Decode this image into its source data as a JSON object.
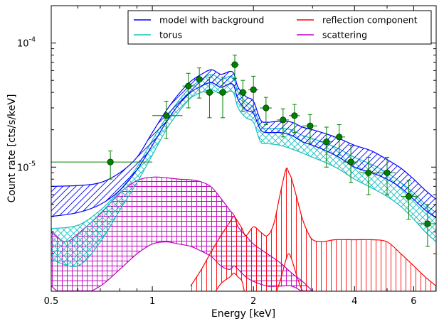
{
  "chart_data": {
    "type": "line",
    "xlabel": "Energy [keV]",
    "ylabel": "Count rate [cts/s/keV]",
    "x_scale": "log",
    "y_scale": "log",
    "xlim": [
      0.5,
      7.0
    ],
    "ylim": [
      1e-06,
      0.0002
    ],
    "x_ticks": [
      {
        "value": 0.5,
        "label": "0.5"
      },
      {
        "value": 1,
        "label": "1"
      },
      {
        "value": 2,
        "label": "2"
      },
      {
        "value": 4,
        "label": "4"
      },
      {
        "value": 6,
        "label": "6"
      }
    ],
    "y_ticks": [
      {
        "value": 1e-05,
        "base": "10",
        "exp": "-5"
      },
      {
        "value": 0.0001,
        "base": "10",
        "exp": "-4"
      }
    ],
    "legend_position": "top-right",
    "legend_columns": 2,
    "series": [
      {
        "name": "model with background",
        "color": "#0000ff",
        "band": "hatched",
        "x": [
          0.5,
          0.6,
          0.7,
          0.8,
          0.9,
          1.0,
          1.1,
          1.2,
          1.3,
          1.4,
          1.5,
          1.6,
          1.7,
          1.75,
          1.8,
          1.9,
          2.0,
          2.1,
          2.2,
          2.4,
          2.6,
          2.8,
          3.0,
          3.3,
          3.6,
          4.0,
          4.5,
          5.0,
          5.5,
          6.0,
          6.5,
          7.0
        ],
        "lower": [
          4e-06,
          4.3e-06,
          5e-06,
          6.5e-06,
          9.5e-06,
          1.5e-05,
          2.3e-05,
          3.2e-05,
          4e-05,
          4.5e-05,
          4.8e-05,
          4.4e-05,
          4.7e-05,
          4.5e-05,
          3.5e-05,
          2.9e-05,
          2.7e-05,
          2e-05,
          1.9e-05,
          1.9e-05,
          1.8e-05,
          1.6e-05,
          1.5e-05,
          1.35e-05,
          1.2e-05,
          1e-05,
          9e-06,
          8e-06,
          6.8e-06,
          5.5e-06,
          4.5e-06,
          3.9e-06
        ],
        "upper": [
          7e-06,
          7.1e-06,
          7.5e-06,
          9e-06,
          1.2e-05,
          1.9e-05,
          2.85e-05,
          3.9e-05,
          4.9e-05,
          5.6e-05,
          6.1e-05,
          5.6e-05,
          5.9e-05,
          5.65e-05,
          4.4e-05,
          3.7e-05,
          3.4e-05,
          2.4e-05,
          2.3e-05,
          2.35e-05,
          2.3e-05,
          2.1e-05,
          2e-05,
          1.85e-05,
          1.7e-05,
          1.5e-05,
          1.35e-05,
          1.15e-05,
          9.8e-06,
          8e-06,
          6.5e-06,
          5.5e-06
        ]
      },
      {
        "name": "torus",
        "color": "#17bfbf",
        "band": "cross-hatched",
        "x": [
          0.5,
          0.6,
          0.7,
          0.8,
          0.9,
          1.0,
          1.1,
          1.2,
          1.3,
          1.4,
          1.5,
          1.6,
          1.7,
          1.75,
          1.8,
          1.9,
          2.0,
          2.1,
          2.2,
          2.4,
          2.6,
          2.8,
          3.0,
          3.3,
          3.6,
          4.0,
          4.5,
          5.0,
          5.5,
          6.0,
          6.5,
          7.0
        ],
        "lower": [
          1.8e-06,
          1.6e-06,
          2.5e-06,
          4.5e-06,
          7.5e-06,
          1.25e-05,
          2e-05,
          2.8e-05,
          3.6e-05,
          4e-05,
          4.2e-05,
          3.9e-05,
          4.1e-05,
          3.9e-05,
          3e-05,
          2.5e-05,
          2.3e-05,
          1.6e-05,
          1.55e-05,
          1.5e-05,
          1.4e-05,
          1.3e-05,
          1.2e-05,
          1.08e-05,
          9.6e-06,
          8e-06,
          6.8e-06,
          5.8e-06,
          4.8e-06,
          3.8e-06,
          3e-06,
          2.5e-06
        ],
        "upper": [
          3.2e-06,
          3.4e-06,
          4.5e-06,
          6.5e-06,
          1e-05,
          1.65e-05,
          2.5e-05,
          3.45e-05,
          4.4e-05,
          5.05e-05,
          5.6e-05,
          5.1e-05,
          5.4e-05,
          5.15e-05,
          4e-05,
          3.35e-05,
          3e-05,
          2.15e-05,
          2.05e-05,
          2.05e-05,
          2e-05,
          1.8e-05,
          1.7e-05,
          1.55e-05,
          1.4e-05,
          1.2e-05,
          1.05e-05,
          9e-06,
          7.5e-06,
          6.2e-06,
          5e-06,
          4.3e-06
        ]
      },
      {
        "name": "reflection component",
        "color": "#ff0000",
        "band": "vertical-hatched",
        "x": [
          1.3,
          1.4,
          1.5,
          1.6,
          1.7,
          1.75,
          1.8,
          1.85,
          1.9,
          2.0,
          2.1,
          2.2,
          2.3,
          2.4,
          2.5,
          2.55,
          2.6,
          2.7,
          2.8,
          2.9,
          3.0,
          3.2,
          3.5,
          4.0,
          4.5,
          5.0,
          5.5,
          6.0,
          6.5,
          7.0
        ],
        "lower": [
          7e-07,
          8e-07,
          9e-07,
          1.15e-06,
          1.3e-06,
          1.4e-06,
          1.3e-06,
          1.2e-06,
          9e-07,
          8e-07,
          9e-07,
          8e-07,
          9e-07,
          1.2e-06,
          1.8e-06,
          2e-06,
          1.8e-06,
          1.3e-06,
          1e-06,
          9e-07,
          8e-07,
          8e-07,
          8e-07,
          8e-07,
          8e-07,
          8e-07,
          7e-07,
          7e-07,
          7e-07,
          7e-07
        ],
        "upper": [
          1.1e-06,
          1.5e-06,
          2.1e-06,
          2.8e-06,
          3.6e-06,
          4e-06,
          3.6e-06,
          3.2e-06,
          2.8e-06,
          3.3e-06,
          3e-06,
          2.8e-06,
          3.5e-06,
          6e-06,
          9.6e-06,
          9e-06,
          8e-06,
          5.5e-06,
          3.8e-06,
          3e-06,
          2.6e-06,
          2.5e-06,
          2.6e-06,
          2.6e-06,
          2.6e-06,
          2.5e-06,
          2e-06,
          1.6e-06,
          1.3e-06,
          1.1e-06
        ]
      },
      {
        "name": "scattering",
        "color": "#bf00bf",
        "band": "grid-hatched",
        "x": [
          0.5,
          0.55,
          0.6,
          0.7,
          0.8,
          0.9,
          1.0,
          1.1,
          1.2,
          1.3,
          1.4,
          1.5,
          1.6,
          1.7,
          1.75,
          1.8,
          1.9,
          2.0,
          2.2,
          2.4,
          2.6,
          2.8,
          3.0
        ],
        "lower": [
          1.1e-06,
          9e-07,
          9e-07,
          1.1e-06,
          1.5e-06,
          2e-06,
          2.4e-06,
          2.5e-06,
          2.4e-06,
          2.3e-06,
          2.1e-06,
          1.9e-06,
          1.6e-06,
          1.5e-06,
          1.6e-06,
          1.5e-06,
          1.3e-06,
          1.2e-06,
          1.1e-06,
          1.1e-06,
          1.1e-06,
          1e-06,
          1e-06
        ],
        "upper": [
          3e-06,
          2.5e-06,
          2.9e-06,
          4.2e-06,
          6.2e-06,
          7.8e-06,
          8.3e-06,
          8.2e-06,
          8e-06,
          7.9e-06,
          7.6e-06,
          6.9e-06,
          5.6e-06,
          4.5e-06,
          4.1e-06,
          3.3e-06,
          2.8e-06,
          2.4e-06,
          2e-06,
          1.7e-06,
          1.4e-06,
          1.2e-06,
          1e-06
        ]
      }
    ],
    "data_points": {
      "color": "#008000",
      "points": [
        {
          "x": 0.75,
          "y": 1.1e-05,
          "xerr_lo": 0.25,
          "xerr_hi": 0.25,
          "yerr_lo": 3e-06,
          "yerr_hi": 2.5e-06
        },
        {
          "x": 1.1,
          "y": 2.6e-05,
          "xerr_lo": 0.1,
          "xerr_hi": 0.13,
          "yerr_lo": 9e-06,
          "yerr_hi": 8e-06
        },
        {
          "x": 1.28,
          "y": 4.5e-05,
          "xerr_lo": 0.05,
          "xerr_hi": 0.05,
          "yerr_lo": 1.5e-05,
          "yerr_hi": 1.2e-05
        },
        {
          "x": 1.38,
          "y": 5.1e-05,
          "xerr_lo": 0.05,
          "xerr_hi": 0.05,
          "yerr_lo": 1.5e-05,
          "yerr_hi": 1.2e-05
        },
        {
          "x": 1.48,
          "y": 4e-05,
          "xerr_lo": 0.05,
          "xerr_hi": 0.05,
          "yerr_lo": 1.5e-05,
          "yerr_hi": 1.3e-05
        },
        {
          "x": 1.62,
          "y": 4e-05,
          "xerr_lo": 0.06,
          "xerr_hi": 0.06,
          "yerr_lo": 1.5e-05,
          "yerr_hi": 1.3e-05
        },
        {
          "x": 1.76,
          "y": 6.7e-05,
          "xerr_lo": 0.05,
          "xerr_hi": 0.05,
          "yerr_lo": 1.5e-05,
          "yerr_hi": 1.3e-05
        },
        {
          "x": 1.86,
          "y": 4e-05,
          "xerr_lo": 0.05,
          "xerr_hi": 0.05,
          "yerr_lo": 1.2e-05,
          "yerr_hi": 1e-05
        },
        {
          "x": 2.0,
          "y": 4.2e-05,
          "xerr_lo": 0.07,
          "xerr_hi": 0.07,
          "yerr_lo": 1.4e-05,
          "yerr_hi": 1.2e-05
        },
        {
          "x": 2.18,
          "y": 3e-05,
          "xerr_lo": 0.09,
          "xerr_hi": 0.09,
          "yerr_lo": 8e-06,
          "yerr_hi": 6.5e-06
        },
        {
          "x": 2.45,
          "y": 2.4e-05,
          "xerr_lo": 0.1,
          "xerr_hi": 0.1,
          "yerr_lo": 6.5e-06,
          "yerr_hi": 5.5e-06
        },
        {
          "x": 2.65,
          "y": 2.6e-05,
          "xerr_lo": 0.1,
          "xerr_hi": 0.1,
          "yerr_lo": 7e-06,
          "yerr_hi": 6e-06
        },
        {
          "x": 2.95,
          "y": 2.15e-05,
          "xerr_lo": 0.15,
          "xerr_hi": 0.15,
          "yerr_lo": 6e-06,
          "yerr_hi": 5e-06
        },
        {
          "x": 3.3,
          "y": 1.6e-05,
          "xerr_lo": 0.15,
          "xerr_hi": 0.15,
          "yerr_lo": 6e-06,
          "yerr_hi": 5e-06
        },
        {
          "x": 3.6,
          "y": 1.75e-05,
          "xerr_lo": 0.15,
          "xerr_hi": 0.15,
          "yerr_lo": 5e-06,
          "yerr_hi": 4.5e-06
        },
        {
          "x": 3.9,
          "y": 1.1e-05,
          "xerr_lo": 0.2,
          "xerr_hi": 0.2,
          "yerr_lo": 3.5e-06,
          "yerr_hi": 4e-06
        },
        {
          "x": 4.4,
          "y": 9e-06,
          "xerr_lo": 0.25,
          "xerr_hi": 0.25,
          "yerr_lo": 3e-06,
          "yerr_hi": 3e-06
        },
        {
          "x": 5.0,
          "y": 9e-06,
          "xerr_lo": 0.3,
          "xerr_hi": 0.3,
          "yerr_lo": 3e-06,
          "yerr_hi": 3e-06
        },
        {
          "x": 5.8,
          "y": 5.8e-06,
          "xerr_lo": 0.3,
          "xerr_hi": 0.4,
          "yerr_lo": 2e-06,
          "yerr_hi": 2e-06
        },
        {
          "x": 6.6,
          "y": 3.5e-06,
          "xerr_lo": 0.4,
          "xerr_hi": 0.4,
          "yerr_lo": 1.2e-06,
          "yerr_hi": 1.5e-06
        }
      ]
    }
  }
}
